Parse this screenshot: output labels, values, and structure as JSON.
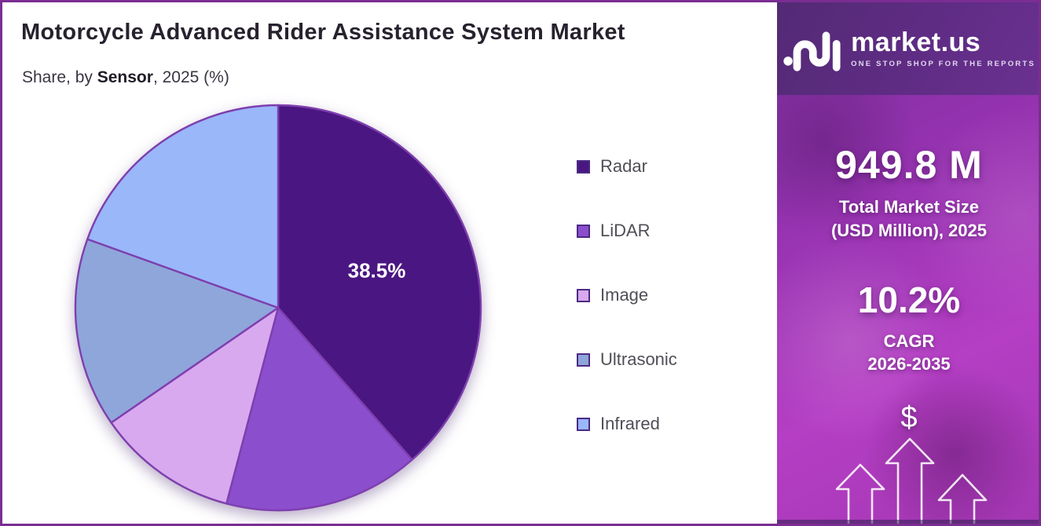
{
  "frame": {
    "border_color": "#7b2d92",
    "background": "#ffffff"
  },
  "header": {
    "title": "Motorcycle Advanced Rider Assistance System Market",
    "subtitle_prefix": "Share, by ",
    "subtitle_emphasis": "Sensor",
    "subtitle_suffix": ", 2025 (%)"
  },
  "chart_data": {
    "type": "pie",
    "title": "Motorcycle Advanced Rider Assistance System Market — Share, by Sensor, 2025 (%)",
    "unit": "%",
    "start_angle_deg": 0,
    "direction": "clockwise",
    "stroke_color": "#7e3fae",
    "legend_position": "right",
    "slices": [
      {
        "label": "Radar",
        "value": 38.5,
        "color": "#4a1681",
        "data_label": "38.5%"
      },
      {
        "label": "LiDAR",
        "value": 15.6,
        "color": "#8b4ecd",
        "data_label": ""
      },
      {
        "label": "Image",
        "value": 11.3,
        "color": "#d8a9ee",
        "data_label": ""
      },
      {
        "label": "Ultrasonic",
        "value": 15.1,
        "color": "#8fa6da",
        "data_label": ""
      },
      {
        "label": "Infrared",
        "value": 19.5,
        "color": "#9ab7fa",
        "data_label": ""
      }
    ]
  },
  "sidebar": {
    "logo": {
      "brand": "market.us",
      "tagline": "ONE STOP SHOP FOR THE REPORTS"
    },
    "market_size": {
      "value": "949.8 M",
      "label_line1": "Total Market Size",
      "label_line2": "(USD Million), 2025"
    },
    "cagr": {
      "value": "10.2%",
      "label": "CAGR",
      "period": "2026-2035"
    },
    "dollar_symbol": "$"
  }
}
